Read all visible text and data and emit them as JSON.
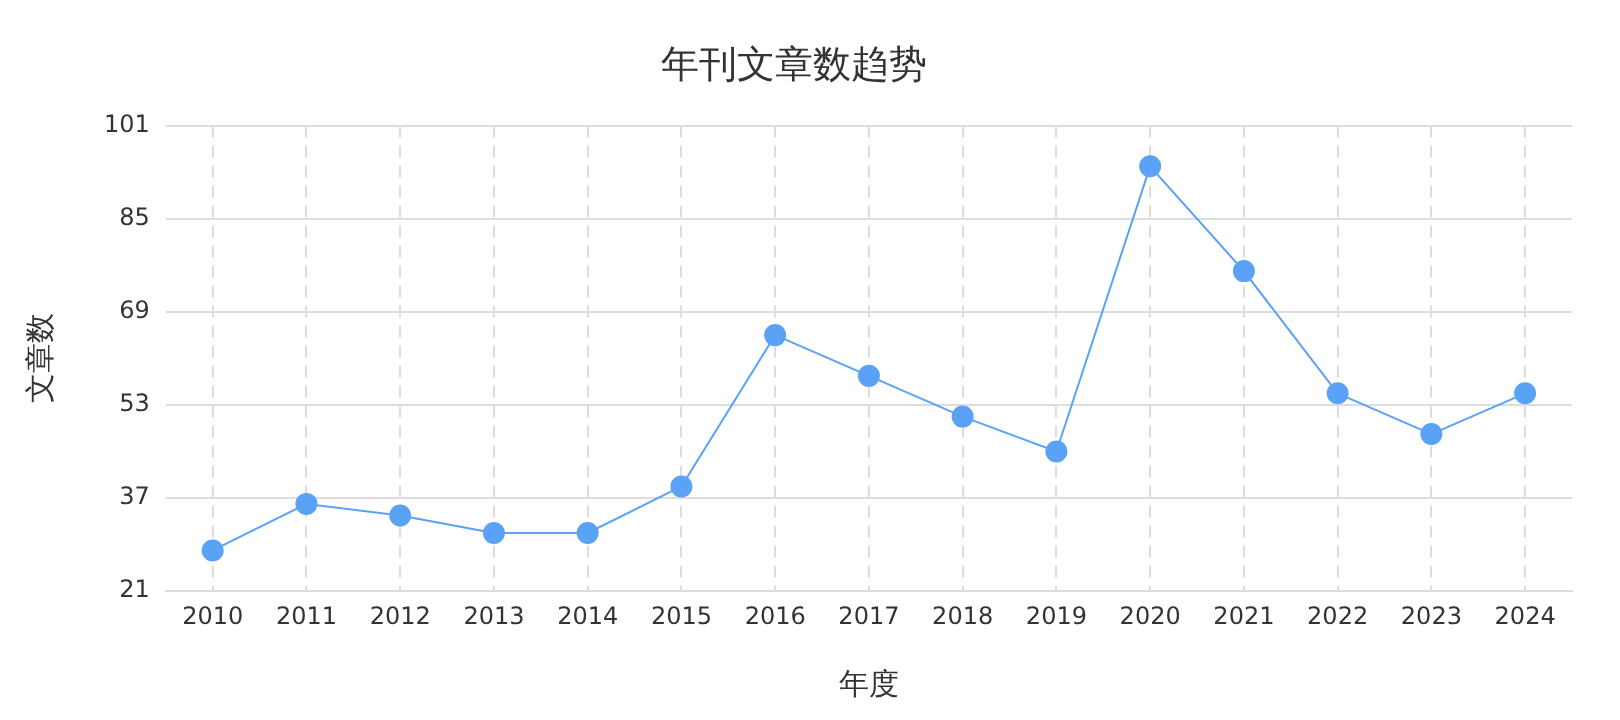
{
  "chart_data": {
    "type": "line",
    "title": "年刊文章数趋势",
    "xlabel": "年度",
    "ylabel": "文章数",
    "categories": [
      "2010",
      "2011",
      "2012",
      "2013",
      "2014",
      "2015",
      "2016",
      "2017",
      "2018",
      "2019",
      "2020",
      "2021",
      "2022",
      "2023",
      "2024"
    ],
    "series": [
      {
        "color": "#5aa2f5",
        "values": [
          28,
          36,
          34,
          31,
          31,
          39,
          65,
          58,
          51,
          45,
          94,
          76,
          55,
          48,
          55
        ]
      }
    ],
    "ylim": [
      21,
      101
    ],
    "yticks": [
      21,
      37,
      53,
      69,
      85,
      101
    ],
    "grid": true,
    "legend": false,
    "marker": "circle",
    "line_style": "solid"
  }
}
